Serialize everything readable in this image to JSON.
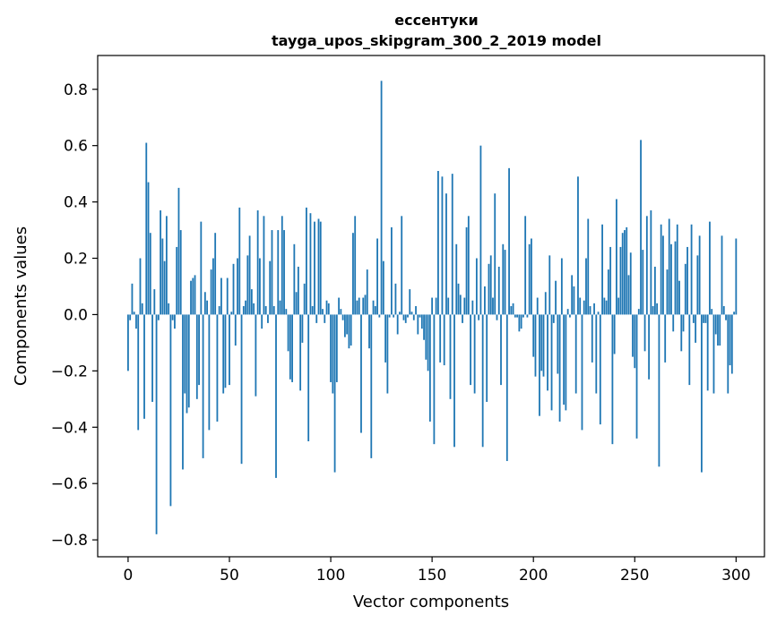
{
  "chart_data": {
    "type": "bar",
    "title": "ессентуки",
    "subtitle": "tayga_upos_skipgram_300_2_2019 model",
    "xlabel": "Vector components",
    "ylabel": "Components values",
    "xlim": [
      -15,
      314
    ],
    "ylim": [
      -0.86,
      0.92
    ],
    "xticks": [
      0,
      50,
      100,
      150,
      200,
      250,
      300
    ],
    "yticks": [
      -0.8,
      -0.6,
      -0.4,
      -0.2,
      0.0,
      0.2,
      0.4,
      0.6,
      0.8
    ],
    "xtick_labels": [
      "0",
      "50",
      "100",
      "150",
      "200",
      "250",
      "300"
    ],
    "ytick_labels": [
      "−0.8",
      "−0.6",
      "−0.4",
      "−0.2",
      "0.0",
      "0.2",
      "0.4",
      "0.6",
      "0.8"
    ],
    "bar_color": "#1f77b4",
    "grid": false,
    "values": [
      -0.2,
      -0.02,
      0.11,
      0.01,
      -0.05,
      -0.41,
      0.2,
      0.04,
      -0.37,
      0.61,
      0.47,
      0.29,
      -0.31,
      0.09,
      -0.78,
      -0.02,
      0.37,
      0.27,
      0.19,
      0.35,
      0.04,
      -0.68,
      -0.02,
      -0.05,
      0.24,
      0.45,
      0.3,
      -0.55,
      -0.28,
      -0.35,
      -0.33,
      0.12,
      0.13,
      0.14,
      -0.3,
      -0.25,
      0.33,
      -0.51,
      0.08,
      0.05,
      -0.41,
      0.16,
      0.2,
      0.29,
      -0.38,
      0.03,
      0.13,
      -0.28,
      -0.26,
      0.13,
      -0.25,
      0.01,
      0.18,
      -0.11,
      0.2,
      0.38,
      -0.53,
      0.03,
      0.05,
      0.21,
      0.28,
      0.09,
      0.04,
      -0.29,
      0.37,
      0.2,
      -0.05,
      0.35,
      0.03,
      -0.03,
      0.19,
      0.3,
      0.03,
      -0.58,
      0.3,
      0.05,
      0.35,
      0.3,
      0.02,
      -0.13,
      -0.23,
      -0.24,
      0.25,
      0.08,
      0.17,
      -0.27,
      -0.1,
      0.11,
      0.38,
      -0.45,
      0.36,
      0.03,
      0.33,
      -0.03,
      0.34,
      0.33,
      0.02,
      -0.03,
      0.05,
      0.04,
      -0.24,
      -0.28,
      -0.56,
      -0.24,
      0.06,
      0.02,
      -0.02,
      -0.08,
      -0.07,
      -0.12,
      -0.11,
      0.29,
      0.35,
      0.05,
      0.06,
      -0.42,
      0.06,
      0.07,
      0.16,
      -0.12,
      -0.51,
      0.05,
      0.03,
      0.27,
      -0.01,
      0.83,
      0.19,
      -0.17,
      -0.28,
      -0.01,
      0.31,
      -0.01,
      0.11,
      -0.07,
      0.01,
      0.35,
      -0.02,
      -0.03,
      -0.01,
      0.09,
      0.01,
      -0.02,
      0.03,
      -0.07,
      -0.01,
      -0.05,
      -0.09,
      -0.16,
      -0.2,
      -0.38,
      0.06,
      -0.46,
      0.06,
      0.51,
      -0.17,
      0.49,
      -0.18,
      0.43,
      0.06,
      -0.3,
      0.5,
      -0.47,
      0.25,
      0.11,
      0.07,
      -0.03,
      0.06,
      0.31,
      0.35,
      -0.25,
      0.05,
      -0.28,
      0.2,
      -0.02,
      0.6,
      -0.47,
      0.1,
      -0.31,
      0.18,
      0.21,
      0.06,
      0.43,
      -0.02,
      0.17,
      -0.25,
      0.25,
      0.23,
      -0.52,
      0.52,
      0.03,
      0.04,
      -0.01,
      -0.01,
      -0.06,
      -0.05,
      -0.01,
      0.35,
      -0.01,
      0.25,
      0.27,
      -0.15,
      -0.22,
      0.06,
      -0.36,
      -0.2,
      -0.22,
      0.08,
      -0.27,
      0.21,
      -0.34,
      -0.03,
      0.12,
      -0.21,
      -0.38,
      0.2,
      -0.32,
      -0.34,
      0.02,
      -0.01,
      0.14,
      0.1,
      -0.28,
      0.49,
      0.06,
      -0.41,
      0.05,
      0.2,
      0.34,
      0.03,
      -0.17,
      0.04,
      -0.28,
      0.01,
      -0.39,
      0.32,
      0.06,
      0.05,
      0.16,
      0.24,
      -0.46,
      -0.14,
      0.41,
      0.06,
      0.24,
      0.29,
      0.3,
      0.31,
      0.14,
      0.22,
      -0.15,
      -0.19,
      -0.44,
      0.02,
      0.62,
      0.23,
      -0.13,
      0.35,
      -0.23,
      0.37,
      0.03,
      0.17,
      0.04,
      -0.54,
      0.32,
      0.28,
      -0.17,
      0.16,
      0.34,
      0.25,
      -0.06,
      0.26,
      0.32,
      0.12,
      -0.13,
      -0.06,
      0.18,
      0.24,
      -0.25,
      0.32,
      -0.03,
      -0.1,
      0.21,
      0.28,
      -0.56,
      -0.03,
      -0.03,
      -0.27,
      0.33,
      0.02,
      -0.28,
      -0.07,
      -0.11,
      -0.11,
      0.28,
      0.03,
      -0.02,
      -0.28,
      -0.18,
      -0.21,
      0.01,
      0.27
    ]
  }
}
